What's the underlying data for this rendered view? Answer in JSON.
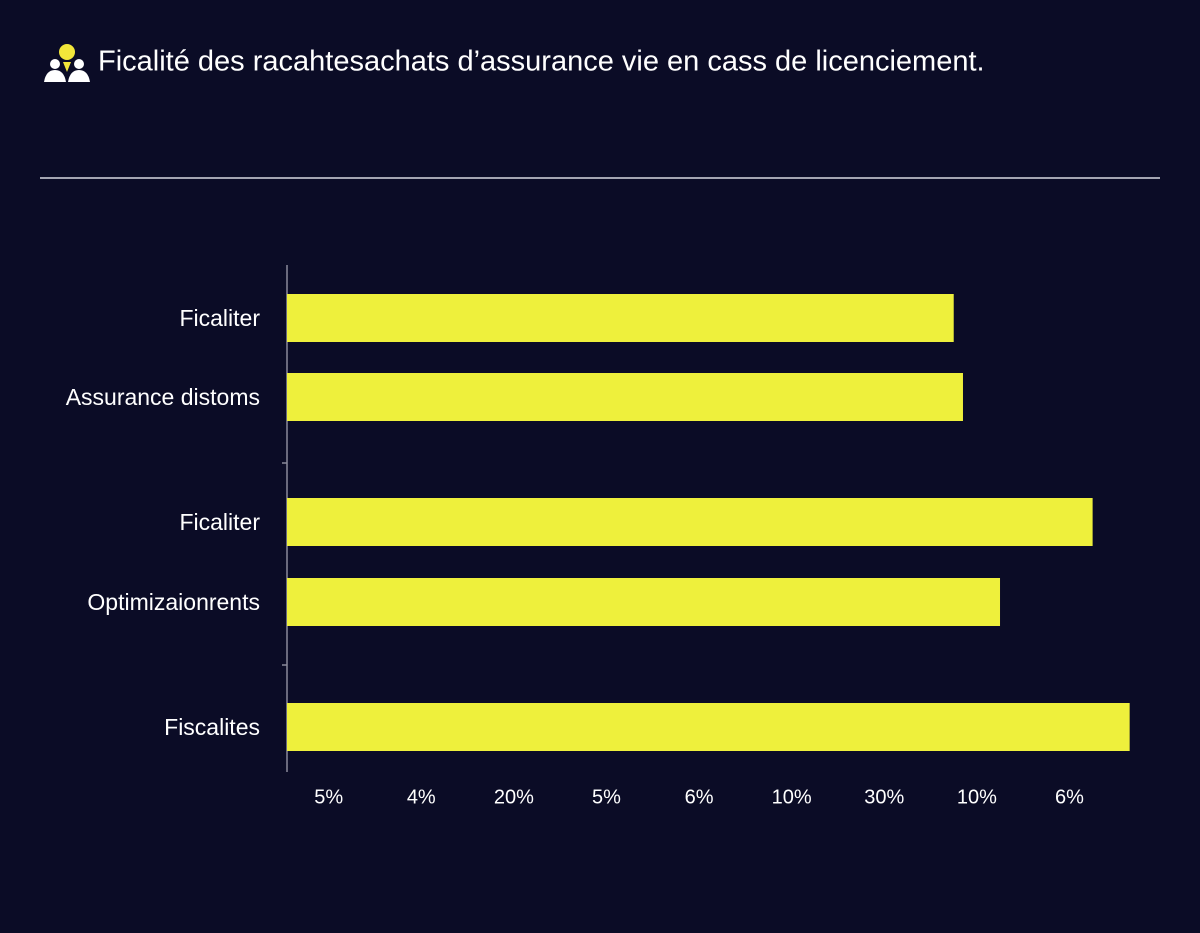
{
  "chart_data": {
    "type": "bar",
    "orientation": "horizontal",
    "title": "Ficalité des racahtesachats d’assurance vie en cass de licenciement.",
    "categories": [
      "Ficaliter",
      "Assurance distoms",
      "Ficaliter",
      "Optimizaionrents",
      "Fiscalites"
    ],
    "values": [
      7.2,
      7.3,
      8.7,
      7.7,
      9.1
    ],
    "color": "#eef03c",
    "xlim": [
      0,
      9.5
    ],
    "x_labels": [
      "5%",
      "4%",
      "20%",
      "5%",
      "6%",
      "10%",
      "30%",
      "10%",
      "6%"
    ]
  }
}
